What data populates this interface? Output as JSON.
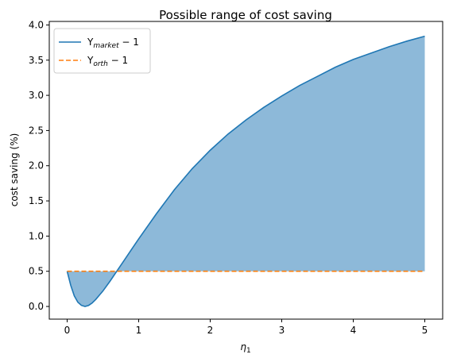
{
  "chart_data": {
    "type": "area",
    "title": "Possible range of cost saving",
    "xlabel": "η",
    "xlabel_sub": "1",
    "ylabel": "cost saving (%)",
    "xlim": [
      -0.25,
      5.25
    ],
    "ylim": [
      -0.18,
      4.05
    ],
    "xticks": [
      0,
      1,
      2,
      3,
      4,
      5
    ],
    "yticks": [
      0.0,
      0.5,
      1.0,
      1.5,
      2.0,
      2.5,
      3.0,
      3.5,
      4.0
    ],
    "xtick_labels": [
      "0",
      "1",
      "2",
      "3",
      "4",
      "5"
    ],
    "ytick_labels": [
      "0.0",
      "0.5",
      "1.0",
      "1.5",
      "2.0",
      "2.5",
      "3.0",
      "3.5",
      "4.0"
    ],
    "grid": false,
    "legend_position": "top-left",
    "fill_between": true,
    "fill_color": "#8db9d9",
    "series": [
      {
        "name_main": "Y",
        "name_sub": "market",
        "name_tail": " − 1",
        "style": "solid",
        "color": "#1f77b4",
        "x": [
          0,
          0.05,
          0.1,
          0.15,
          0.2,
          0.25,
          0.3,
          0.35,
          0.4,
          0.5,
          0.6,
          0.7,
          0.8,
          0.9,
          1.0,
          1.25,
          1.5,
          1.75,
          2.0,
          2.25,
          2.5,
          2.75,
          3.0,
          3.25,
          3.5,
          3.75,
          4.0,
          4.25,
          4.5,
          4.75,
          5.0
        ],
        "y": [
          0.5,
          0.3,
          0.15,
          0.06,
          0.015,
          0.0,
          0.015,
          0.05,
          0.1,
          0.22,
          0.36,
          0.51,
          0.66,
          0.81,
          0.96,
          1.32,
          1.66,
          1.96,
          2.22,
          2.45,
          2.65,
          2.83,
          2.99,
          3.14,
          3.27,
          3.4,
          3.51,
          3.6,
          3.69,
          3.77,
          3.84
        ]
      },
      {
        "name_main": "Y",
        "name_sub": "orth",
        "name_tail": " − 1",
        "style": "dashed",
        "color": "#ff7f0e",
        "x": [
          0,
          5
        ],
        "y": [
          0.5,
          0.5
        ]
      }
    ]
  }
}
